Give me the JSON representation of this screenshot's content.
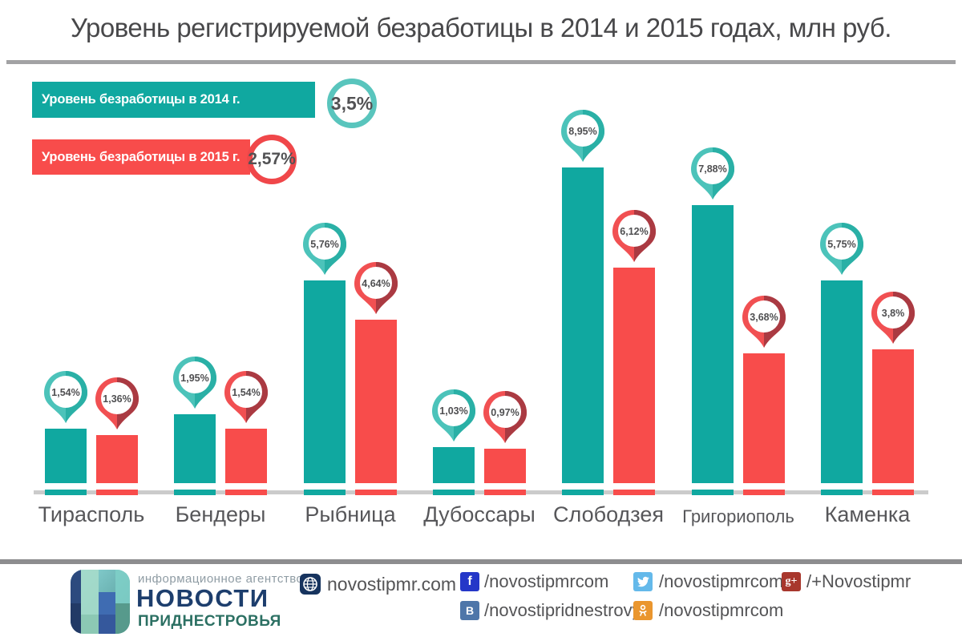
{
  "title": "Уровень регистрируемой безработицы в 2014 и 2015 годах, млн руб.",
  "legend": {
    "y2014": {
      "label": "Уровень безработицы в 2014 г.",
      "value": "3,5%",
      "color": "#10a8a0"
    },
    "y2015": {
      "label": "Уровень безработицы в 2015 г.",
      "value": "2,57%",
      "color": "#f84c4b"
    }
  },
  "chart_data": {
    "type": "bar",
    "title": "Уровень регистрируемой безработицы в 2014 и 2015 годах, млн руб.",
    "unit": "%",
    "categories": [
      "Тирасполь",
      "Бендеры",
      "Рыбница",
      "Дубоссары",
      "Слободзея",
      "Григориополь",
      "Каменка"
    ],
    "series": [
      {
        "name": "Уровень безработицы в 2014 г.",
        "color": "#10a8a0",
        "pin_light": "#4cc3ba",
        "pin_dark": "#2ab0a6",
        "values": [
          1.54,
          1.95,
          5.76,
          1.03,
          8.95,
          7.88,
          5.75
        ],
        "labels": [
          "1,54%",
          "1,95%",
          "5,76%",
          "1,03%",
          "8,95%",
          "7,88%",
          "5,75%"
        ]
      },
      {
        "name": "Уровень безработицы в 2015 г.",
        "color": "#f84c4b",
        "pin_light": "#f15052",
        "pin_dark": "#aa3a42",
        "values": [
          1.36,
          1.54,
          4.64,
          0.97,
          6.12,
          3.68,
          3.8
        ],
        "labels": [
          "1,36%",
          "1,54%",
          "4,64%",
          "0,97%",
          "6,12%",
          "3,68%",
          "3,8%"
        ]
      }
    ],
    "reference_values": {
      "y2014_total": "3,5%",
      "y2015_total": "2,57%"
    },
    "ylim": [
      0,
      10
    ],
    "grid": false,
    "legend_position": "top-left"
  },
  "footer": {
    "agency_tagline": "информационное агентство",
    "agency_name_line1": "НОВОСТИ",
    "agency_name_line2": "ПРИДНЕСТРОВЬЯ",
    "website": "novostipmr.com",
    "social": {
      "facebook": "/novostipmrcom",
      "vk": "/novostipridnestrovya",
      "twitter": "/novostipmrcom",
      "odnoklassniki": "/novostipmrcom",
      "google_plus": "/+Novostipmr"
    }
  }
}
